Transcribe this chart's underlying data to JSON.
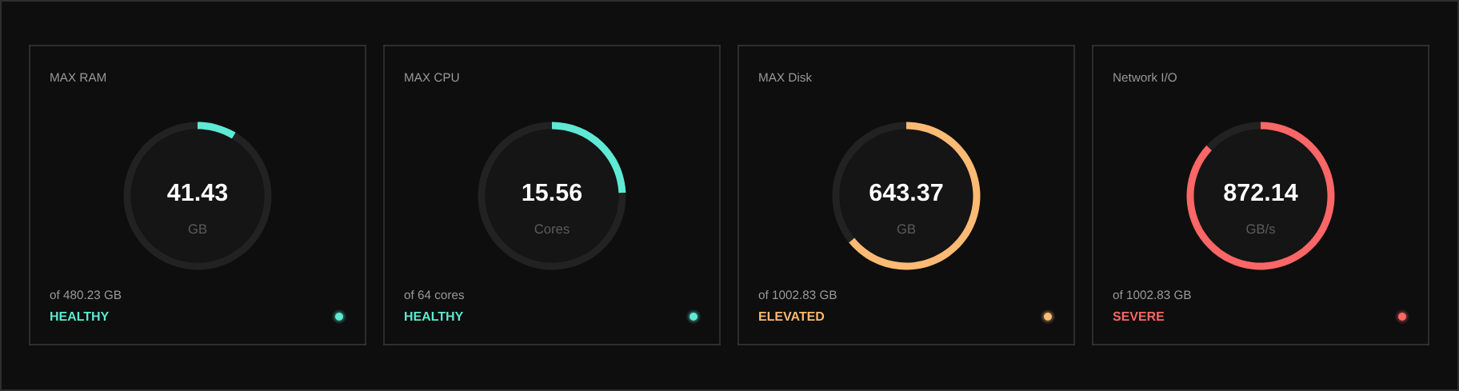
{
  "chart_data": [
    {
      "type": "donut",
      "title": "MAX RAM",
      "categories": [
        null,
        null
      ],
      "values": [
        41.43,
        438.8
      ],
      "colors": [
        "#5eead4",
        "#222222"
      ],
      "value_labels": [
        "41.43",
        null
      ],
      "annotations": [
        "GB",
        "of 480.23 GB",
        "HEALTHY"
      ]
    },
    {
      "type": "donut",
      "title": "MAX CPU",
      "categories": [
        null,
        null
      ],
      "values": [
        15.56,
        48.44
      ],
      "colors": [
        "#5eead4",
        "#222222"
      ],
      "value_labels": [
        "15.56",
        null
      ],
      "annotations": [
        "Cores",
        "of 64 cores",
        "HEALTHY"
      ]
    },
    {
      "type": "donut",
      "title": "MAX Disk",
      "categories": [
        null,
        null
      ],
      "values": [
        643.37,
        359.46
      ],
      "colors": [
        "#fdba74",
        "#222222"
      ],
      "value_labels": [
        "643.37",
        null
      ],
      "annotations": [
        "GB",
        "of 1002.83 GB",
        "ELEVATED"
      ]
    },
    {
      "type": "donut",
      "title": "Network I/O",
      "categories": [
        null,
        null
      ],
      "values": [
        872.14,
        130.69
      ],
      "colors": [
        "#fb6666",
        "#222222"
      ],
      "value_labels": [
        "872.14",
        null
      ],
      "annotations": [
        "GB/s",
        "of 1002.83 GB",
        "SEVERE"
      ]
    }
  ]
}
